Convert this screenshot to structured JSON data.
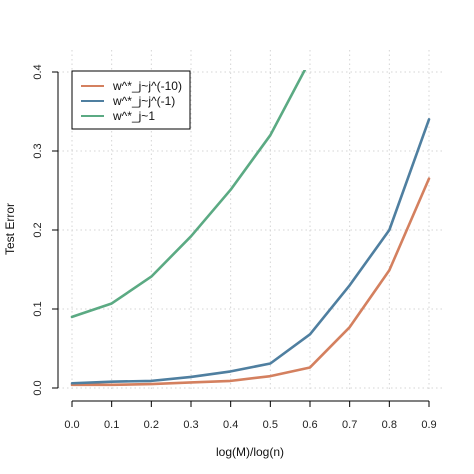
{
  "chart_data": {
    "type": "line",
    "xlabel": "log(M)/log(n)",
    "ylabel": "Test Error",
    "xlim": [
      0.0,
      0.9
    ],
    "ylim": [
      0.0,
      0.4
    ],
    "x_ticks": [
      "0.0",
      "0.1",
      "0.2",
      "0.3",
      "0.4",
      "0.5",
      "0.6",
      "0.7",
      "0.8",
      "0.9"
    ],
    "y_ticks": [
      "0.0",
      "0.1",
      "0.2",
      "0.3",
      "0.4"
    ],
    "grid": true,
    "legend_position": "top-left",
    "series": [
      {
        "name": "w^*_j~j^(-10)",
        "color": "#D4805F",
        "x": [
          0.0,
          0.1,
          0.2,
          0.3,
          0.4,
          0.5,
          0.6,
          0.7,
          0.8,
          0.9
        ],
        "y": [
          0.004,
          0.004,
          0.005,
          0.007,
          0.009,
          0.015,
          0.026,
          0.077,
          0.149,
          0.265
        ]
      },
      {
        "name": "w^*_j~j^(-1)",
        "color": "#4F7FA0",
        "x": [
          0.0,
          0.1,
          0.2,
          0.3,
          0.4,
          0.5,
          0.6,
          0.7,
          0.8,
          0.9
        ],
        "y": [
          0.006,
          0.008,
          0.009,
          0.014,
          0.021,
          0.031,
          0.068,
          0.13,
          0.2,
          0.34
        ]
      },
      {
        "name": "w^*_j~1",
        "color": "#5BAA83",
        "x": [
          0.0,
          0.1,
          0.2,
          0.3,
          0.4,
          0.5,
          0.6
        ],
        "y": [
          0.09,
          0.107,
          0.141,
          0.192,
          0.251,
          0.32,
          0.415
        ]
      }
    ]
  }
}
